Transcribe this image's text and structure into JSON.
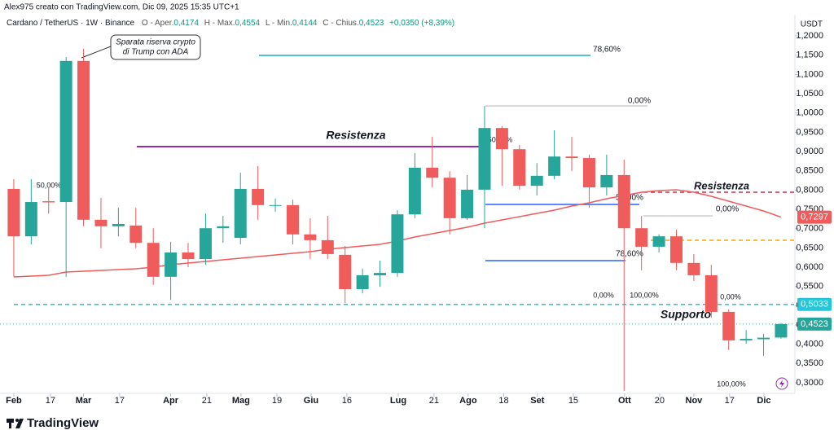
{
  "author": "Alex975 creato con TradingView.com, Dic 09, 2025 15:35 UTC+1",
  "legend": {
    "symbol": "Cardano / TetherUS · 1W · Binance",
    "items": [
      {
        "name": "O - Aper.",
        "value": "0,4174"
      },
      {
        "name": "H - Max.",
        "value": "0,4554"
      },
      {
        "name": "L - Min.",
        "value": "0,4144"
      },
      {
        "name": "C - Chius.",
        "value": "0,4523"
      }
    ],
    "change": "+0,0350 (+8,39%)"
  },
  "callout": [
    "Sparata riserva crypto",
    "di Trump con ADA"
  ],
  "brand": "TradingView",
  "chart_data": {
    "type": "candlestick",
    "currency": "USDT",
    "up_color": "#26a69a",
    "down_color": "#f05b5b",
    "open": [
      0.803,
      0.68,
      0.771,
      0.769,
      1.135,
      0.723,
      0.706,
      0.708,
      0.663,
      0.575,
      0.638,
      0.621,
      0.701,
      0.676,
      0.803,
      0.759,
      0.761,
      0.685,
      0.67,
      0.632,
      0.543,
      0.579,
      0.585,
      0.737,
      0.858,
      0.832,
      0.727,
      0.801,
      0.961,
      0.906,
      0.811,
      0.837,
      0.887,
      0.883,
      0.807,
      0.839,
      0.701,
      0.653,
      0.68,
      0.611,
      0.579,
      0.484,
      0.41,
      0.413,
      0.4174
    ],
    "high": [
      0.828,
      0.828,
      0.807,
      1.145,
      1.166,
      0.78,
      0.754,
      0.754,
      0.701,
      0.666,
      0.663,
      0.739,
      0.733,
      0.845,
      0.862,
      0.778,
      0.775,
      0.727,
      0.733,
      0.655,
      0.596,
      0.617,
      0.748,
      0.896,
      0.938,
      0.849,
      0.839,
      1.018,
      0.966,
      0.917,
      0.87,
      0.955,
      0.938,
      0.892,
      0.892,
      0.879,
      0.733,
      0.685,
      0.697,
      0.634,
      0.606,
      0.49,
      0.437,
      0.427,
      0.4554
    ],
    "low": [
      0.575,
      0.659,
      0.739,
      0.575,
      0.706,
      0.649,
      0.68,
      0.649,
      0.554,
      0.515,
      0.6,
      0.606,
      0.663,
      0.659,
      0.723,
      0.744,
      0.659,
      0.621,
      0.621,
      0.507,
      0.532,
      0.549,
      0.575,
      0.727,
      0.807,
      0.685,
      0.723,
      0.701,
      0.811,
      0.801,
      0.786,
      0.828,
      0.849,
      0.754,
      0.786,
      0.279,
      0.592,
      0.638,
      0.592,
      0.564,
      0.469,
      0.385,
      0.401,
      0.37,
      0.4144
    ],
    "close": [
      0.68,
      0.769,
      0.768,
      1.135,
      0.723,
      0.706,
      0.712,
      0.663,
      0.575,
      0.638,
      0.621,
      0.701,
      0.706,
      0.803,
      0.761,
      0.761,
      0.685,
      0.67,
      0.634,
      0.543,
      0.579,
      0.585,
      0.737,
      0.858,
      0.832,
      0.727,
      0.801,
      0.961,
      0.906,
      0.811,
      0.837,
      0.887,
      0.883,
      0.807,
      0.839,
      0.701,
      0.653,
      0.68,
      0.611,
      0.579,
      0.484,
      0.41,
      0.414,
      0.417,
      0.4523
    ],
    "ma": {
      "color": "#f05b5b",
      "values": [
        0.5747,
        0.5768,
        0.5789,
        0.5873,
        0.5895,
        0.5916,
        0.5937,
        0.5958,
        0.6,
        0.6064,
        0.6106,
        0.6148,
        0.6191,
        0.6233,
        0.6275,
        0.6317,
        0.6359,
        0.6402,
        0.6465,
        0.6507,
        0.655,
        0.6592,
        0.6676,
        0.6782,
        0.6866,
        0.6951,
        0.7035,
        0.7141,
        0.7226,
        0.731,
        0.7395,
        0.7479,
        0.7585,
        0.7669,
        0.7775,
        0.786,
        0.7944,
        0.7986,
        0.8007,
        0.7944,
        0.7838,
        0.7712,
        0.7585,
        0.7458,
        0.7297
      ]
    },
    "xlim": [
      -0.79,
      44.75
    ],
    "ylim": [
      0.2725,
      1.2466
    ],
    "xticks": [
      {
        "value": 0,
        "label": "Feb"
      },
      {
        "value": 2.1,
        "label": "17"
      },
      {
        "value": 4.0,
        "label": "Mar"
      },
      {
        "value": 6.07,
        "label": "17"
      },
      {
        "value": 9.0,
        "label": "Apr"
      },
      {
        "value": 11.07,
        "label": "21"
      },
      {
        "value": 13.03,
        "label": "Mag"
      },
      {
        "value": 15.09,
        "label": "19"
      },
      {
        "value": 17.05,
        "label": "Giu"
      },
      {
        "value": 19.1,
        "label": "16"
      },
      {
        "value": 22.05,
        "label": "Lug"
      },
      {
        "value": 24.1,
        "label": "21"
      },
      {
        "value": 26.06,
        "label": "Ago"
      },
      {
        "value": 28.1,
        "label": "18"
      },
      {
        "value": 30.03,
        "label": "Set"
      },
      {
        "value": 32.09,
        "label": "15"
      },
      {
        "value": 35.03,
        "label": "Ott"
      },
      {
        "value": 37.04,
        "label": "20"
      },
      {
        "value": 39.0,
        "label": "Nov"
      },
      {
        "value": 41.05,
        "label": "17"
      },
      {
        "value": 43.02,
        "label": "Dic"
      }
    ],
    "yticks": [
      {
        "value": 0.3,
        "label": "0,3000"
      },
      {
        "value": 0.35,
        "label": "0,3500"
      },
      {
        "value": 0.4,
        "label": "0,4000"
      },
      {
        "value": 0.45,
        "label": "0,4500"
      },
      {
        "value": 0.5,
        "label": "0,5000"
      },
      {
        "value": 0.55,
        "label": "0,5500"
      },
      {
        "value": 0.6,
        "label": "0,6000"
      },
      {
        "value": 0.65,
        "label": "0,6500"
      },
      {
        "value": 0.7,
        "label": "0,7000"
      },
      {
        "value": 0.75,
        "label": "0,7500"
      },
      {
        "value": 0.8,
        "label": "0,8000"
      },
      {
        "value": 0.85,
        "label": "0,8500"
      },
      {
        "value": 0.9,
        "label": "0,9000"
      },
      {
        "value": 0.95,
        "label": "0,9500"
      },
      {
        "value": 1.0,
        "label": "1,0000"
      },
      {
        "value": 1.05,
        "label": "1,0500"
      },
      {
        "value": 1.1,
        "label": "1,1000"
      },
      {
        "value": 1.15,
        "label": "1,1500"
      },
      {
        "value": 1.2,
        "label": "1,2000"
      }
    ],
    "levels": [
      {
        "price": 0.9127,
        "color": "#9c27b0",
        "label": "Resistenza"
      },
      {
        "price": 0.7944,
        "color": "#c8304a",
        "label": "Resistenza"
      },
      {
        "price": 0.5033,
        "color": "#26c6da",
        "label": "Supporto"
      },
      {
        "price": 0.6698,
        "color": "#f7a600"
      },
      {
        "price": 1.1494,
        "color": "#22a7c9",
        "label": "78,60%"
      },
      {
        "price": 1.0184,
        "color": "#b2b5be",
        "label": "0,00%"
      },
      {
        "price": 0.7627,
        "color": "#2962ff",
        "label": "50,00%"
      },
      {
        "price": 0.6169,
        "color": "#2962ff",
        "label": "78,60%"
      },
      {
        "price": 0.7331,
        "color": "#b2b5be",
        "label": "0,00%"
      }
    ],
    "annotations": [
      "50,00%",
      "50,00%",
      "0,00%",
      "100,00%",
      "0,00%",
      "100,00%"
    ],
    "price_tags": [
      {
        "value": 0.7297,
        "label": "0,7297",
        "color": "#f05b5b"
      },
      {
        "value": 0.5033,
        "label": "0,5033",
        "color": "#26c6da"
      },
      {
        "value": 0.4523,
        "label": "0,4523",
        "color": "#26a69a"
      }
    ]
  }
}
